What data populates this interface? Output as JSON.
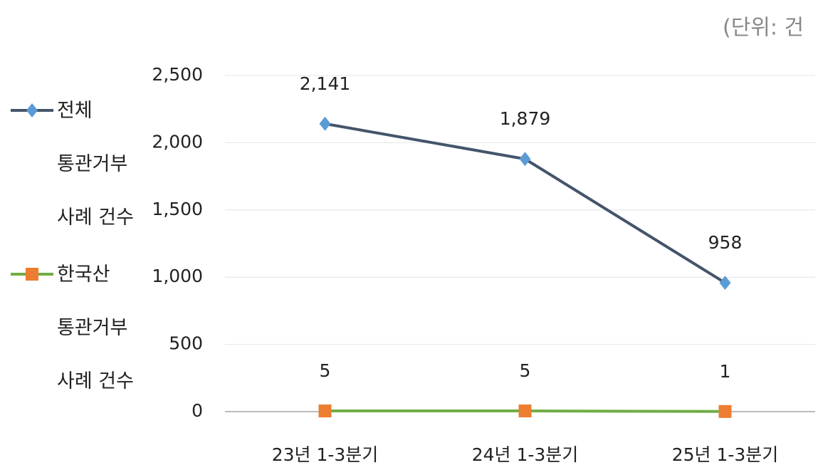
{
  "chart_data": {
    "type": "line",
    "unit": "(단위: 건",
    "categories": [
      "23년 1-3분기",
      "24년 1-3분기",
      "25년 1-3분기"
    ],
    "series": [
      {
        "name": "전체 통관거부 사례 건수",
        "color": "#44546a",
        "marker_color": "#5b9bd5",
        "marker": "diamond",
        "values": [
          2141,
          1879,
          958
        ],
        "value_labels": [
          "2,141",
          "1,879",
          "958"
        ]
      },
      {
        "name": "한국산 통관거부 사례 건수",
        "color": "#70ad47",
        "marker_color": "#ed7d31",
        "marker": "square",
        "values": [
          5,
          5,
          1
        ]
      }
    ],
    "ylim": [
      0,
      2500
    ],
    "yticks": [
      0,
      500,
      {
        "value": 1000,
        "label": "1,000"
      },
      {
        "value": 1500,
        "label": "1,500"
      },
      {
        "value": 2000,
        "label": "2,000"
      },
      {
        "value": 2500,
        "label": "2,500"
      }
    ],
    "grid": true,
    "legend": "left"
  }
}
